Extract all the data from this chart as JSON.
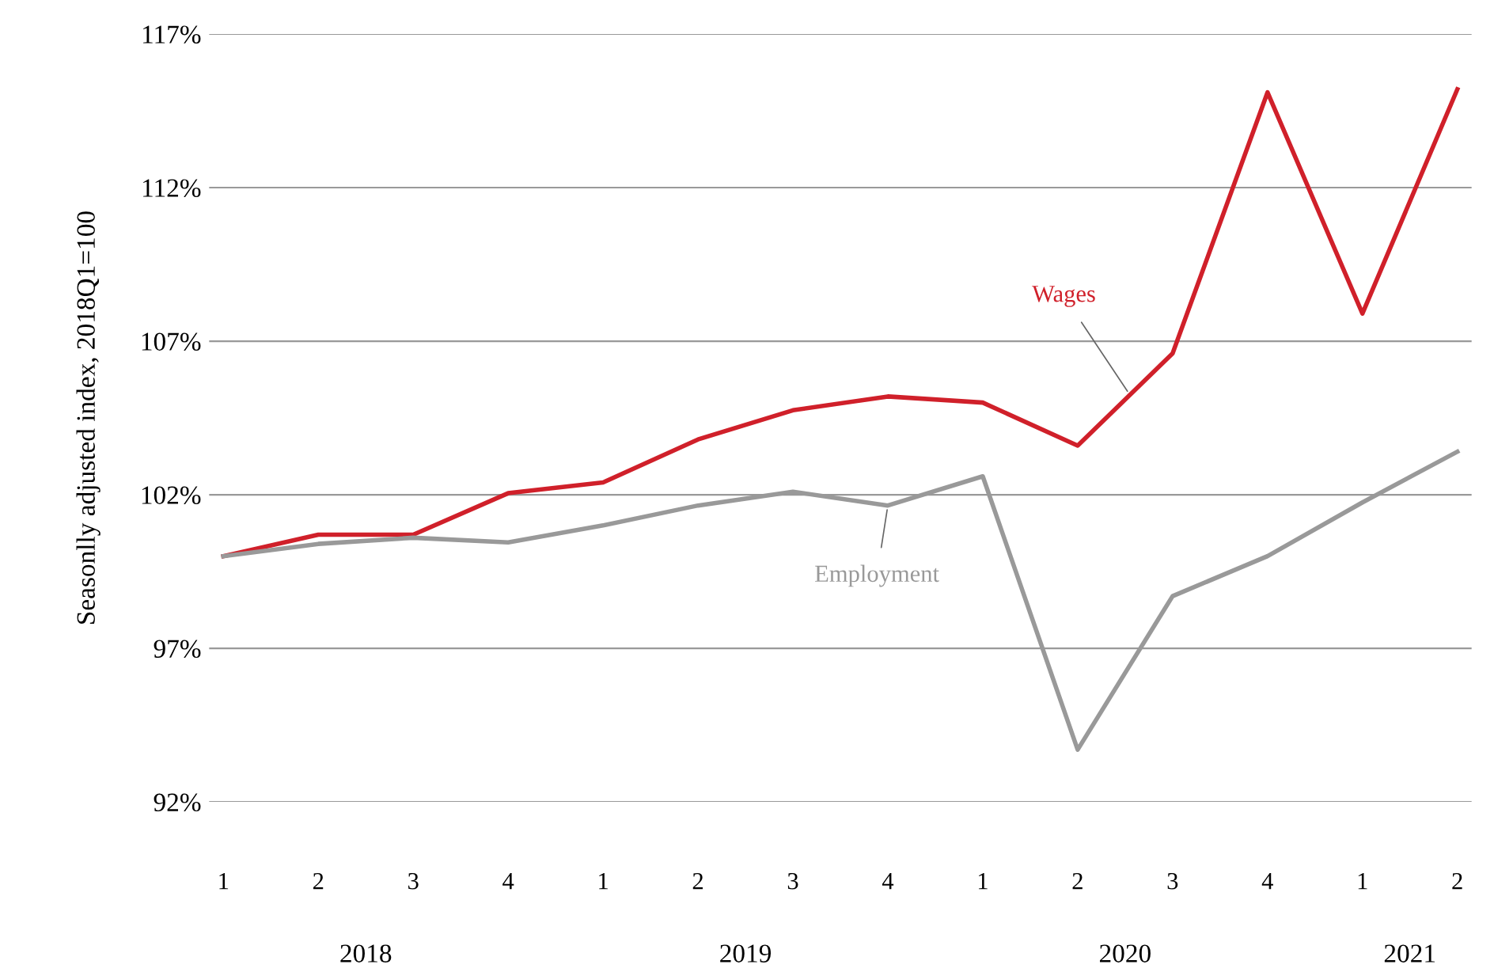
{
  "chart_data": {
    "type": "line",
    "ylabel": "Seasonlly adjusted index, 2018Q1=100",
    "categories": [
      "1",
      "2",
      "3",
      "4",
      "1",
      "2",
      "3",
      "4",
      "1",
      "2",
      "3",
      "4",
      "1",
      "2"
    ],
    "series": [
      {
        "name": "Wages",
        "color": "#d0202a",
        "values": [
          100,
          100.7,
          100.7,
          102.05,
          102.4,
          103.8,
          104.75,
          105.2,
          105.0,
          103.6,
          106.6,
          115.1,
          107.9,
          115.2
        ]
      },
      {
        "name": "Employment",
        "color": "#999999",
        "values": [
          100,
          100.4,
          100.6,
          100.45,
          101.0,
          101.65,
          102.1,
          101.65,
          102.6,
          93.7,
          98.7,
          100,
          101.75,
          103.4
        ]
      }
    ],
    "ylim": [
      92,
      117
    ],
    "yticks": [
      {
        "value": 92,
        "label": "92%"
      },
      {
        "value": 97,
        "label": "97%"
      },
      {
        "value": 102,
        "label": "102%"
      },
      {
        "value": 107,
        "label": "107%"
      },
      {
        "value": 112,
        "label": "112%"
      },
      {
        "value": 117,
        "label": "117%"
      }
    ],
    "grid": "y",
    "legend": false,
    "marker": "none",
    "line_style": "solid",
    "annotations": [
      "2018",
      "2019",
      "2020",
      "2021"
    ]
  }
}
